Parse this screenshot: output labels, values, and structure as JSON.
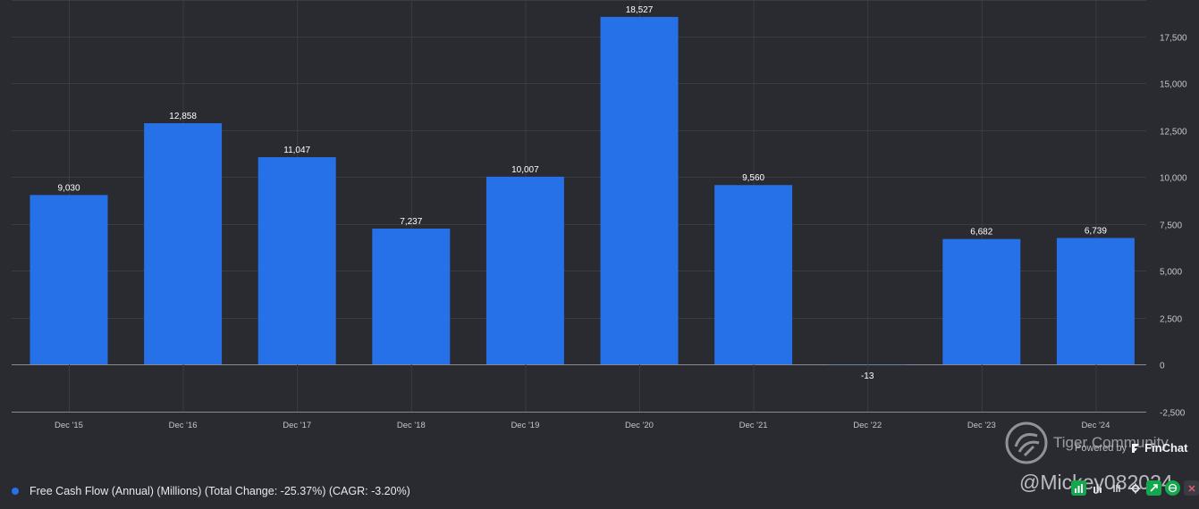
{
  "chart_data": {
    "type": "bar",
    "categories": [
      "Dec '15",
      "Dec '16",
      "Dec '17",
      "Dec '18",
      "Dec '19",
      "Dec '20",
      "Dec '21",
      "Dec '22",
      "Dec '23",
      "Dec '24"
    ],
    "series": [
      {
        "name": "Free Cash Flow (Annual) (Millions) (Total Change: -25.37%) (CAGR: -3.20%)",
        "values": [
          9030,
          12858,
          11047,
          7237,
          10007,
          18527,
          9560,
          -13,
          6682,
          6739
        ],
        "labels": [
          "9,030",
          "12,858",
          "11,047",
          "7,237",
          "10,007",
          "18,527",
          "9,560",
          "-13",
          "6,682",
          "6,739"
        ]
      }
    ],
    "y_ticks": [
      17500,
      15000,
      12500,
      10000,
      7500,
      5000,
      2500,
      0,
      -2500
    ],
    "y_tick_labels": [
      "17,500",
      "15,000",
      "12,500",
      "10,000",
      "7,500",
      "5,000",
      "2,500",
      "0",
      "-2,500"
    ],
    "ylim": [
      -2500,
      19200
    ],
    "y_axis_position": "right",
    "grid": true,
    "legend_placement": "bottom-left",
    "bar_color": "#2670e8",
    "label_color": "#ffffff"
  },
  "legend": {
    "text": "Free Cash Flow (Annual) (Millions) (Total Change: -25.37%) (CAGR: -3.20%)",
    "color": "#2670e8"
  },
  "powered_by": {
    "prefix": "Powered by",
    "brand": "FinChat"
  },
  "watermark": {
    "community": "Tiger Community",
    "user": "@Mickey082024"
  },
  "toolbar": {
    "icons": [
      "bar-chart-icon",
      "columns-icon",
      "number-icon",
      "gear-icon",
      "download-icon",
      "globe-icon",
      "close-icon"
    ]
  },
  "colors": {
    "background": "#2a2a31",
    "grid": "#3b3b44",
    "axis_text": "#c4c4cc"
  }
}
